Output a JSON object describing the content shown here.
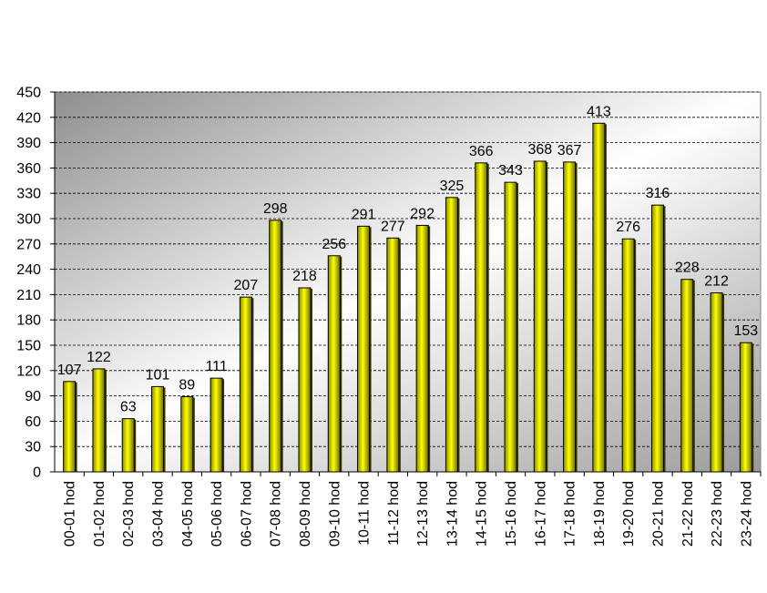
{
  "chart_data": {
    "type": "bar",
    "title": "",
    "xlabel": "",
    "ylabel": "",
    "ylim": [
      0,
      450
    ],
    "ytick_step": 30,
    "grid": true,
    "legend": "none",
    "bar_color": "#ffff00",
    "bar_shade_color": "#3a3a00",
    "plot_background": [
      "#8f8f8f",
      "#ffffff",
      "#9a9a9a"
    ],
    "categories": [
      "00-01 hod",
      "01-02 hod",
      "02-03 hod",
      "03-04 hod",
      "04-05 hod",
      "05-06 hod",
      "06-07 hod",
      "07-08 hod",
      "08-09 hod",
      "09-10 hod",
      "10-11 hod",
      "11-12 hod",
      "12-13 hod",
      "13-14 hod",
      "14-15 hod",
      "15-16 hod",
      "16-17 hod",
      "17-18 hod",
      "18-19 hod",
      "19-20 hod",
      "20-21 hod",
      "21-22 hod",
      "22-23 hod",
      "23-24 hod"
    ],
    "values": [
      107,
      122,
      63,
      101,
      89,
      111,
      207,
      298,
      218,
      256,
      291,
      277,
      292,
      325,
      366,
      343,
      368,
      367,
      413,
      276,
      316,
      228,
      212,
      153
    ]
  }
}
